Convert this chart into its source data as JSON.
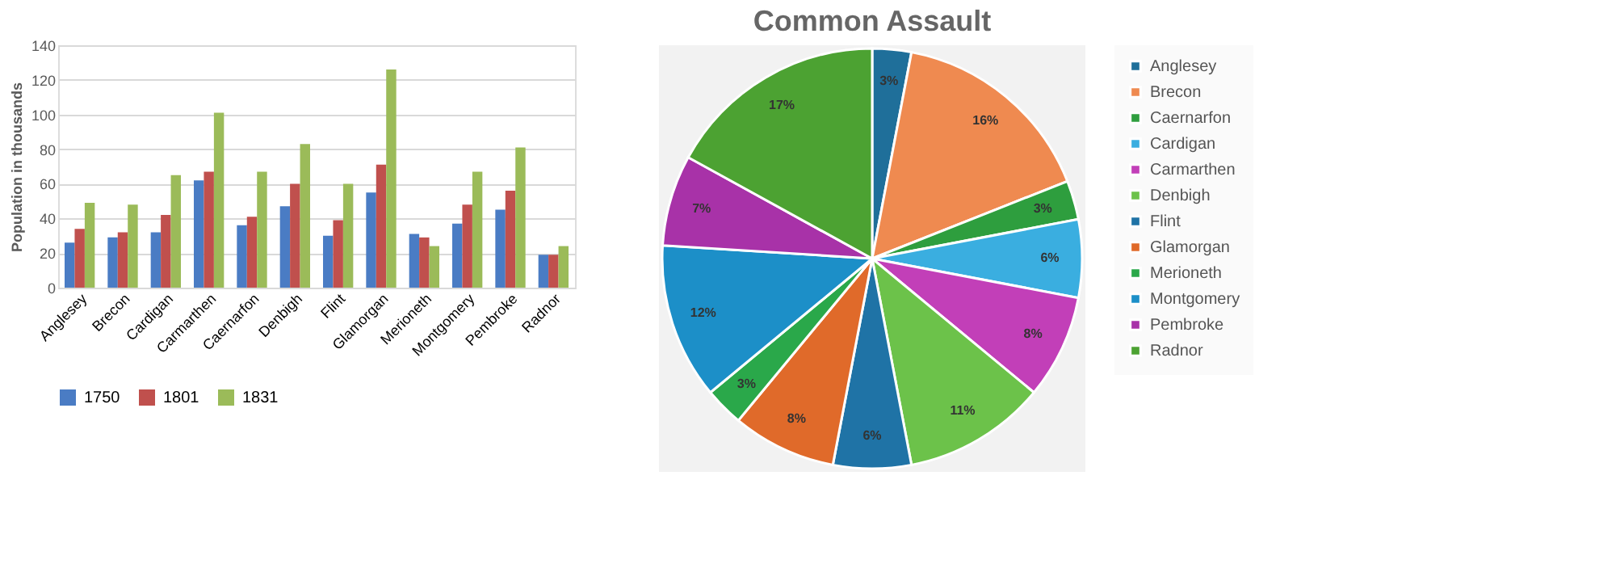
{
  "chart_data": [
    {
      "type": "bar",
      "ylabel": "Population in thousands",
      "categories": [
        "Anglesey",
        "Brecon",
        "Cardigan",
        "Carmarthen",
        "Caernarfon",
        "Denbigh",
        "Flint",
        "Glamorgan",
        "Merioneth",
        "Montgomery",
        "Pembroke",
        "Radnor"
      ],
      "series": [
        {
          "name": "1750",
          "color": "#4a7cc4",
          "values": [
            26,
            29,
            32,
            62,
            36,
            47,
            30,
            55,
            31,
            37,
            45,
            19
          ]
        },
        {
          "name": "1801",
          "color": "#c0504d",
          "values": [
            34,
            32,
            42,
            67,
            41,
            60,
            39,
            71,
            29,
            48,
            56,
            19
          ]
        },
        {
          "name": "1831",
          "color": "#9bbb59",
          "values": [
            49,
            48,
            65,
            101,
            67,
            83,
            60,
            126,
            24,
            67,
            81,
            24
          ]
        }
      ],
      "ylim": [
        0,
        140
      ],
      "yticks": [
        0,
        20,
        40,
        60,
        80,
        100,
        120,
        140
      ],
      "grid": "y",
      "legend": "bottom"
    },
    {
      "type": "pie",
      "title": "Common Assault",
      "categories": [
        "Anglesey",
        "Brecon",
        "Caernarfon",
        "Cardigan",
        "Carmarthen",
        "Denbigh",
        "Flint",
        "Glamorgan",
        "Merioneth",
        "Montgomery",
        "Pembroke",
        "Radnor"
      ],
      "values": [
        3,
        16,
        3,
        6,
        8,
        11,
        6,
        8,
        3,
        12,
        7,
        17
      ],
      "value_labels": [
        "3%",
        "16%",
        "3%",
        "6%",
        "8%",
        "11%",
        "6%",
        "8%",
        "3%",
        "12%",
        "7%",
        "17%"
      ],
      "colors": [
        "#1f6f9a",
        "#ef8a50",
        "#2e9e3e",
        "#3aaee0",
        "#c23fb8",
        "#6cc24a",
        "#1f73a6",
        "#e06a2a",
        "#2aa84a",
        "#1c8fc8",
        "#a832a8",
        "#4ca232"
      ],
      "legend": "right"
    }
  ]
}
